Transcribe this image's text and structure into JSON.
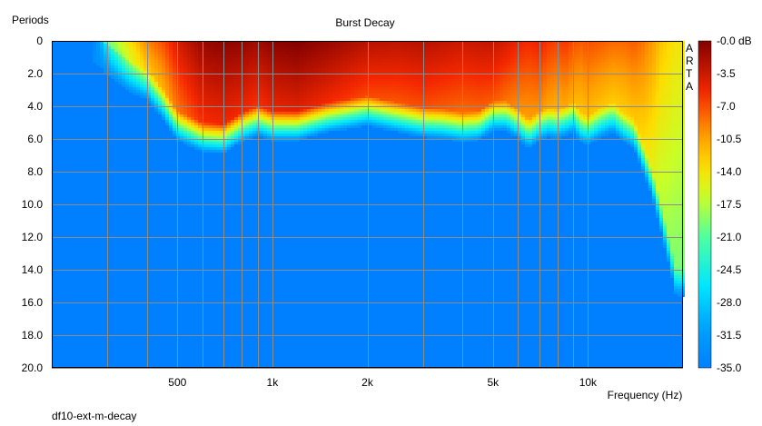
{
  "chart_data": {
    "type": "heatmap",
    "title": "Burst Decay",
    "ylabel": "Periods",
    "xlabel": "Frequency (Hz)",
    "footer": "df10-ext-m-decay",
    "watermark": "ARTA",
    "x_scale": "log",
    "xlim": [
      200,
      20000
    ],
    "ylim": [
      0,
      20
    ],
    "y_inverted": true,
    "y_ticks": [
      "0",
      "2.0",
      "4.0",
      "6.0",
      "8.0",
      "10.0",
      "12.0",
      "14.0",
      "16.0",
      "18.0",
      "20.0"
    ],
    "x_tick_labels": [
      {
        "value": 500,
        "label": "500"
      },
      {
        "value": 1000,
        "label": "1k"
      },
      {
        "value": 2000,
        "label": "2k"
      },
      {
        "value": 5000,
        "label": "5k"
      },
      {
        "value": 10000,
        "label": "10k"
      }
    ],
    "color_scale": {
      "unit": "dB",
      "min": -35,
      "max": 0,
      "ticks": [
        "-0.0 dB",
        "-3.5",
        "-7.0",
        "-10.5",
        "-14.0",
        "-17.5",
        "-21.0",
        "-24.5",
        "-28.0",
        "-31.5",
        "-35.0"
      ]
    },
    "grid": true,
    "decay_profile": {
      "frequency_hz": [
        270,
        300,
        350,
        400,
        450,
        500,
        600,
        700,
        800,
        900,
        1000,
        1200,
        1500,
        2000,
        2500,
        3000,
        3500,
        4000,
        4500,
        5000,
        5500,
        6000,
        6500,
        7000,
        7500,
        8000,
        8500,
        9000,
        9500,
        10000,
        11000,
        12000,
        13000,
        14000,
        15000,
        16000,
        17000,
        18000,
        19000
      ],
      "decay_periods": [
        0.6,
        1.5,
        2.5,
        3.0,
        4.2,
        5.5,
        6.2,
        6.3,
        5.6,
        5.2,
        5.5,
        5.5,
        5.0,
        4.6,
        5.0,
        5.3,
        5.4,
        5.6,
        5.5,
        4.9,
        4.9,
        5.4,
        6.0,
        5.5,
        5.3,
        5.4,
        5.2,
        5.0,
        5.6,
        5.8,
        5.3,
        5.0,
        5.6,
        6.0,
        7.5,
        9.0,
        11.0,
        13.0,
        15.0
      ],
      "peak_level_db": [
        -30,
        -20,
        -14,
        -9,
        -7,
        -4,
        -1,
        -0.5,
        -0.8,
        -1.5,
        -0.5,
        0,
        -1,
        -2.5,
        -2.8,
        -2.5,
        -3,
        -3.5,
        -3.2,
        -3,
        -4,
        -5,
        -5.5,
        -5,
        -6,
        -6.5,
        -6,
        -7,
        -7.5,
        -7,
        -7.5,
        -8,
        -8,
        -7.5,
        -8.5,
        -10,
        -12,
        -13,
        -14
      ]
    }
  }
}
